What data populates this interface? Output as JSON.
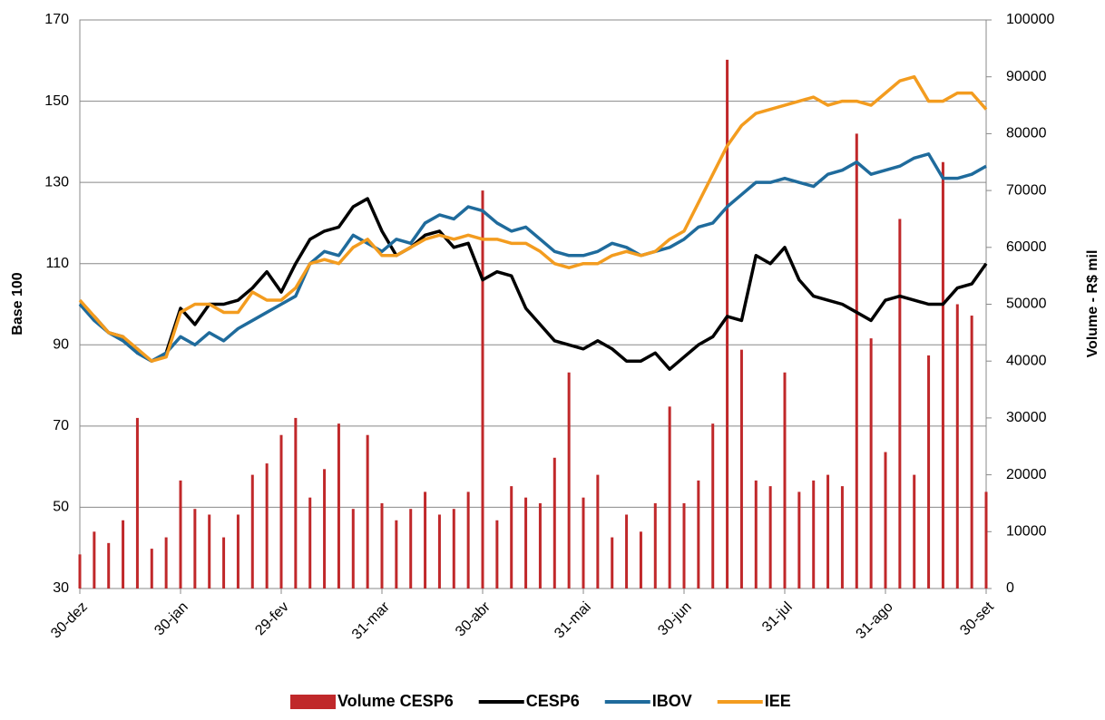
{
  "chart_data": {
    "type": "bar-line",
    "y_label": "Base 100",
    "y2_label": "Volume - R$ mil",
    "categories": [
      "30-dez",
      null,
      null,
      null,
      null,
      null,
      null,
      "30-jan",
      null,
      null,
      null,
      null,
      null,
      null,
      "29-fev",
      null,
      null,
      null,
      null,
      null,
      null,
      "31-mar",
      null,
      null,
      null,
      null,
      null,
      null,
      "30-abr",
      null,
      null,
      null,
      null,
      null,
      null,
      "31-mai",
      null,
      null,
      null,
      null,
      null,
      null,
      "30-jun",
      null,
      null,
      null,
      null,
      null,
      null,
      "31-jul",
      null,
      null,
      null,
      null,
      null,
      null,
      "31-ago",
      null,
      null,
      null,
      null,
      null,
      null,
      "30-set"
    ],
    "ylim": [
      30,
      170
    ],
    "yticks": [
      30,
      50,
      70,
      90,
      110,
      130,
      150,
      170
    ],
    "y2lim": [
      0,
      100000
    ],
    "y2ticks": [
      0,
      10000,
      20000,
      30000,
      40000,
      50000,
      60000,
      70000,
      80000,
      90000,
      100000
    ],
    "grid": true,
    "legend": "bottom",
    "series": [
      {
        "name": "Volume CESP6",
        "type": "bar",
        "axis": "y2",
        "color": "#c0282a",
        "values": [
          6000,
          10000,
          8000,
          12000,
          30000,
          7000,
          9000,
          19000,
          14000,
          13000,
          9000,
          13000,
          20000,
          22000,
          27000,
          30000,
          16000,
          21000,
          29000,
          14000,
          27000,
          15000,
          12000,
          14000,
          17000,
          13000,
          14000,
          17000,
          70000,
          12000,
          18000,
          16000,
          15000,
          23000,
          38000,
          16000,
          20000,
          9000,
          13000,
          10000,
          15000,
          32000,
          15000,
          19000,
          29000,
          93000,
          42000,
          19000,
          18000,
          38000,
          17000,
          19000,
          20000,
          18000,
          80000,
          44000,
          24000,
          65000,
          20000,
          41000,
          75000,
          50000,
          48000,
          17000
        ]
      },
      {
        "name": "CESP6",
        "type": "line",
        "color": "#000000",
        "values": [
          100,
          97,
          93,
          92,
          88,
          86,
          88,
          99,
          95,
          100,
          100,
          101,
          104,
          108,
          103,
          110,
          116,
          118,
          119,
          124,
          126,
          118,
          112,
          114,
          117,
          118,
          114,
          115,
          106,
          108,
          107,
          99,
          95,
          91,
          90,
          89,
          91,
          89,
          86,
          86,
          88,
          84,
          87,
          90,
          92,
          97,
          96,
          112,
          110,
          114,
          106,
          102,
          101,
          100,
          98,
          96,
          101,
          102,
          101,
          100,
          100,
          104,
          105,
          110
        ]
      },
      {
        "name": "IBOV",
        "type": "line",
        "color": "#1f6b9c",
        "values": [
          100,
          96,
          93,
          91,
          88,
          86,
          88,
          92,
          90,
          93,
          91,
          94,
          96,
          98,
          100,
          102,
          110,
          113,
          112,
          117,
          115,
          113,
          116,
          115,
          120,
          122,
          121,
          124,
          123,
          120,
          118,
          119,
          116,
          113,
          112,
          112,
          113,
          115,
          114,
          112,
          113,
          114,
          116,
          119,
          120,
          124,
          127,
          130,
          130,
          131,
          130,
          129,
          132,
          133,
          135,
          132,
          133,
          134,
          136,
          137,
          131,
          131,
          132,
          134
        ]
      },
      {
        "name": "IEE",
        "type": "line",
        "color": "#f39c1f",
        "values": [
          101,
          97,
          93,
          92,
          89,
          86,
          87,
          98,
          100,
          100,
          98,
          98,
          103,
          101,
          101,
          104,
          110,
          111,
          110,
          114,
          116,
          112,
          112,
          114,
          116,
          117,
          116,
          117,
          116,
          116,
          115,
          115,
          113,
          110,
          109,
          110,
          110,
          112,
          113,
          112,
          113,
          116,
          118,
          125,
          132,
          139,
          144,
          147,
          148,
          149,
          150,
          151,
          149,
          150,
          150,
          149,
          152,
          155,
          156,
          150,
          150,
          152,
          152,
          148
        ]
      }
    ]
  }
}
